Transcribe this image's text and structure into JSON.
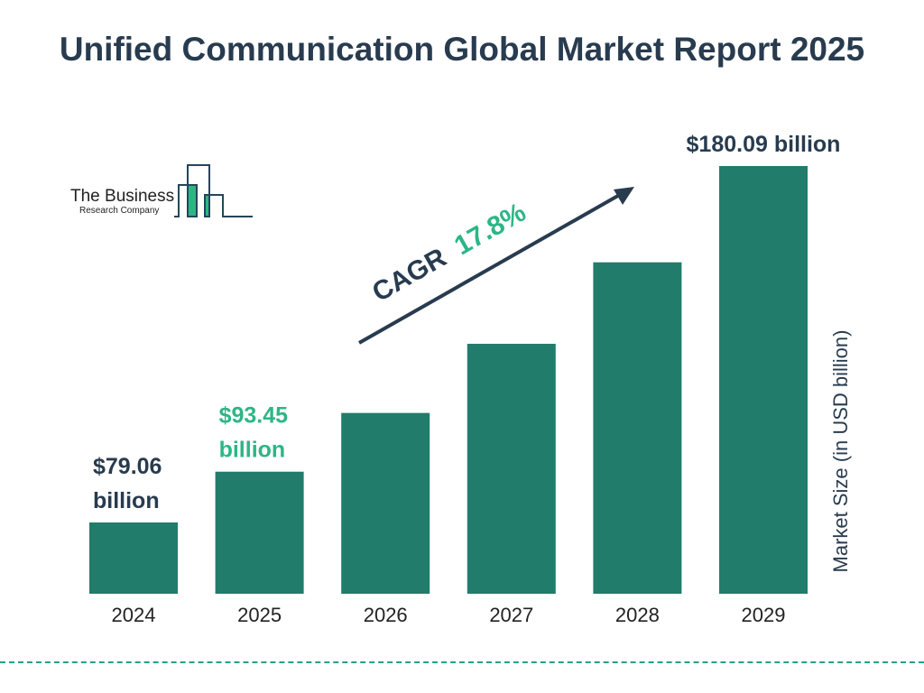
{
  "chart_data": {
    "type": "bar",
    "title": "Unified Communication Global Market Report 2025",
    "categories": [
      "2024",
      "2025",
      "2026",
      "2027",
      "2028",
      "2029"
    ],
    "values": [
      79.06,
      93.45,
      110.1,
      129.7,
      152.8,
      180.09
    ],
    "data_labels": [
      "$79.06 billion",
      "$93.45 billion",
      "",
      "",
      "",
      "$180.09 billion"
    ],
    "data_label_lines": [
      [
        "$79.06",
        "billion"
      ],
      [
        "$93.45",
        "billion"
      ],
      [],
      [],
      [],
      [
        "$180.09 billion"
      ]
    ],
    "ylabel": "Market Size (in USD billion)",
    "xlabel": "",
    "annotation": {
      "prefix": "CAGR",
      "value": "17.8%"
    },
    "grid": false,
    "colors": {
      "bar": "#217c6b",
      "title": "#283b4f",
      "accent": "#2cb686",
      "label_dark": "#283b4f"
    }
  },
  "logo": {
    "line1": "The Business",
    "line2": "Research Company"
  }
}
